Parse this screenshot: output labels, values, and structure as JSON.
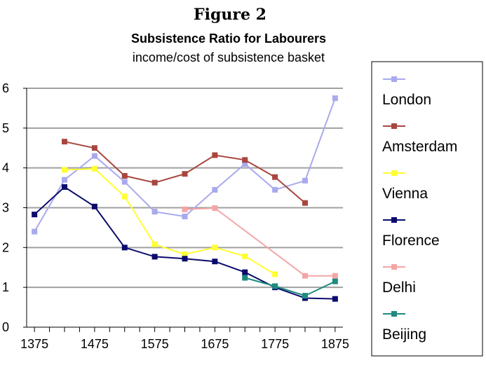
{
  "figure_label": "Figure 2",
  "chart_data": {
    "type": "line",
    "title": "Subsistence Ratio for Labourers",
    "subtitle": "income/cost of subsistence basket",
    "xlabel": "",
    "ylabel": "",
    "xlim": [
      1362,
      1888
    ],
    "ylim": [
      0,
      6
    ],
    "x_ticks": [
      1375,
      1475,
      1575,
      1675,
      1775,
      1875
    ],
    "y_ticks": [
      0,
      1,
      2,
      3,
      4,
      5,
      6
    ],
    "grid": true,
    "legend": "right",
    "series": [
      {
        "name": "London",
        "color": "#a9a9ee",
        "marker": "square",
        "x": [
          1375,
          1425,
          1475,
          1525,
          1575,
          1625,
          1675,
          1725,
          1775,
          1825,
          1875
        ],
        "y": [
          2.4,
          3.7,
          4.3,
          3.65,
          2.9,
          2.78,
          3.45,
          4.1,
          3.45,
          3.68,
          5.75
        ]
      },
      {
        "name": "Amsterdam",
        "color": "#a8463e",
        "marker": "square",
        "x": [
          1425,
          1475,
          1525,
          1575,
          1625,
          1675,
          1725,
          1775,
          1825
        ],
        "y": [
          4.66,
          4.5,
          3.8,
          3.63,
          3.85,
          4.32,
          4.2,
          3.77,
          3.12
        ]
      },
      {
        "name": "Vienna",
        "color": "#ffff33",
        "marker": "square",
        "x": [
          1425,
          1475,
          1525,
          1575,
          1625,
          1675,
          1725,
          1775
        ],
        "y": [
          3.95,
          3.98,
          3.28,
          2.08,
          1.83,
          2.0,
          1.78,
          1.33
        ]
      },
      {
        "name": "Florence",
        "color": "#0b0b6e",
        "marker": "square",
        "x": [
          1375,
          1425,
          1475,
          1525,
          1575,
          1625,
          1675,
          1725,
          1775,
          1825,
          1875
        ],
        "y": [
          2.83,
          3.52,
          3.03,
          2.0,
          1.77,
          1.72,
          1.65,
          1.38,
          1.0,
          0.73,
          0.71
        ]
      },
      {
        "name": "Delhi",
        "color": "#f4a6a6",
        "marker": "square",
        "x": [
          1625,
          1675,
          1825,
          1875
        ],
        "y": [
          2.96,
          2.99,
          1.29,
          1.29
        ]
      },
      {
        "name": "Beijing",
        "color": "#1e8a80",
        "marker": "square",
        "x": [
          1725,
          1775,
          1825,
          1875
        ],
        "y": [
          1.24,
          1.03,
          0.79,
          1.15
        ]
      }
    ]
  }
}
